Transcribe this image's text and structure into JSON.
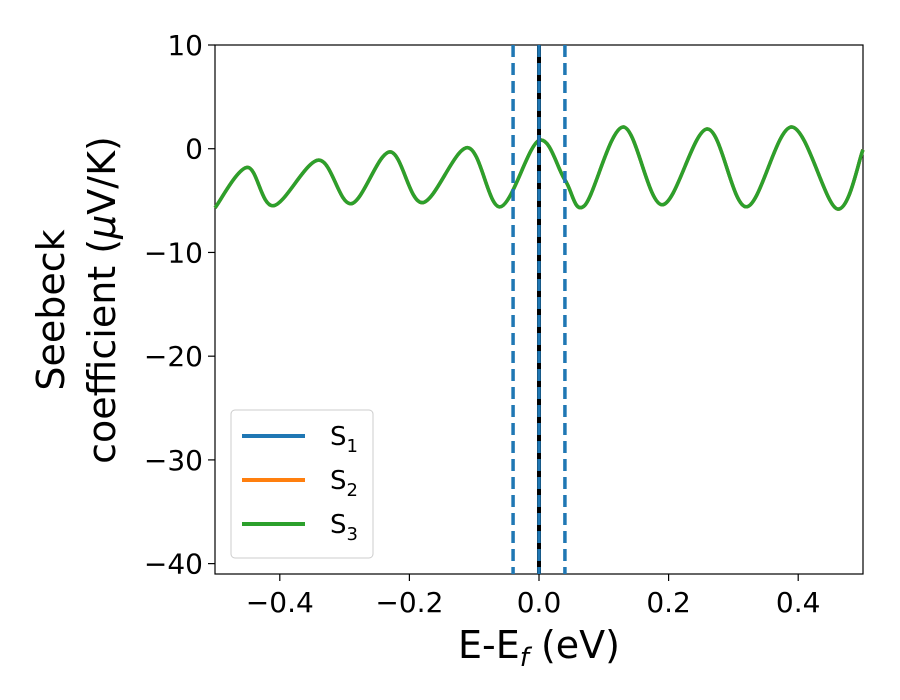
{
  "chart_data": {
    "type": "line",
    "title": "",
    "xlabel": {
      "main": "E-E",
      "sub": "f",
      "unit": " (eV)"
    },
    "ylabel": {
      "line1": "Seebeck",
      "line2_prefix": "coefficient  (",
      "line2_mu": "μ",
      "line2_suffix": "V/K)"
    },
    "xlim": [
      -0.5,
      0.5
    ],
    "ylim": [
      -41,
      10
    ],
    "x_ticks": [
      -0.4,
      -0.2,
      0.0,
      0.2,
      0.4
    ],
    "x_tick_labels": [
      "−0.4",
      "−0.2",
      "0.0",
      "0.2",
      "0.4"
    ],
    "y_ticks": [
      10,
      0,
      -10,
      -20,
      -30,
      -40
    ],
    "y_tick_labels": [
      "10",
      "0",
      "−10",
      "−20",
      "−30",
      "−40"
    ],
    "grid": false,
    "legend_position": "lower-left",
    "series": [
      {
        "name": "S",
        "sub": "1",
        "color": "#1f77b4",
        "x": [
          -0.5,
          -0.45,
          -0.41,
          -0.34,
          -0.29,
          -0.23,
          -0.18,
          -0.11,
          -0.06,
          0.0,
          0.04,
          0.07,
          0.13,
          0.19,
          0.26,
          0.32,
          0.39,
          0.46,
          0.5
        ],
        "y": [
          -5.7,
          -1.8,
          -5.5,
          -1.1,
          -5.3,
          -0.3,
          -5.2,
          0.1,
          -5.6,
          0.8,
          -3.0,
          -5.5,
          2.1,
          -5.4,
          1.9,
          -5.6,
          2.1,
          -5.8,
          -0.1
        ]
      },
      {
        "name": "S",
        "sub": "2",
        "color": "#ff7f0e",
        "x": [
          -0.5,
          -0.45,
          -0.41,
          -0.34,
          -0.29,
          -0.23,
          -0.18,
          -0.11,
          -0.06,
          0.0,
          0.04,
          0.07,
          0.13,
          0.19,
          0.26,
          0.32,
          0.39,
          0.46,
          0.5
        ],
        "y": [
          -5.7,
          -1.8,
          -5.5,
          -1.1,
          -5.3,
          -0.3,
          -5.2,
          0.1,
          -5.6,
          0.8,
          -3.0,
          -5.5,
          2.1,
          -5.4,
          1.9,
          -5.6,
          2.1,
          -5.8,
          -0.1
        ]
      },
      {
        "name": "S",
        "sub": "3",
        "color": "#2ca02c",
        "x": [
          -0.5,
          -0.45,
          -0.41,
          -0.34,
          -0.29,
          -0.23,
          -0.18,
          -0.11,
          -0.06,
          0.0,
          0.04,
          0.07,
          0.13,
          0.19,
          0.26,
          0.32,
          0.39,
          0.46,
          0.5
        ],
        "y": [
          -5.7,
          -1.8,
          -5.5,
          -1.1,
          -5.3,
          -0.3,
          -5.2,
          0.1,
          -5.6,
          0.8,
          -3.0,
          -5.5,
          2.1,
          -5.4,
          1.9,
          -5.6,
          2.1,
          -5.8,
          -0.1
        ]
      }
    ],
    "vertical_lines": [
      {
        "x": 0.0,
        "style": "solid",
        "color": "#000000"
      },
      {
        "x": -0.04,
        "style": "dashed",
        "color": "#1f77b4"
      },
      {
        "x": 0.0,
        "style": "dashed",
        "color": "#1f77b4"
      },
      {
        "x": 0.04,
        "style": "dashed",
        "color": "#1f77b4"
      }
    ]
  }
}
